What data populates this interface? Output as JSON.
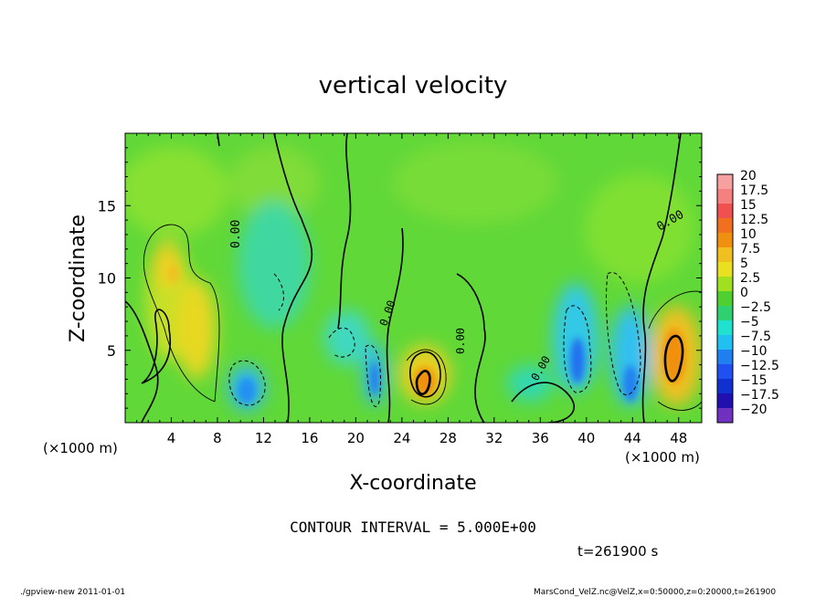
{
  "chart_data": {
    "type": "heatmap",
    "title": "vertical velocity",
    "xlabel": "X-coordinate",
    "ylabel": "Z-coordinate",
    "x_unit_left": "(×1000 m)",
    "x_unit_right": "(×1000 m)",
    "xlim": [
      0,
      50
    ],
    "ylim": [
      0,
      20
    ],
    "x_ticks": [
      4,
      8,
      12,
      16,
      20,
      24,
      28,
      32,
      36,
      40,
      44,
      48
    ],
    "y_ticks": [
      5,
      10,
      15
    ],
    "colorbar": {
      "labels": [
        "20",
        "17.5",
        "15",
        "12.5",
        "10",
        "7.5",
        "5",
        "2.5",
        "0",
        "−2.5",
        "−5",
        "−7.5",
        "−10",
        "−12.5",
        "−15",
        "−17.5",
        "−20"
      ],
      "colors": [
        "#f7a0a0",
        "#f48080",
        "#f05050",
        "#f07020",
        "#f09010",
        "#f0c020",
        "#e8e020",
        "#a0e020",
        "#50d030",
        "#30d070",
        "#20e0d0",
        "#20c0f0",
        "#2080f0",
        "#2050f0",
        "#1030d0",
        "#2010b0",
        "#7030c0"
      ]
    },
    "contour_interval": "CONTOUR INTERVAL = 5.000E+00",
    "contour_labels": [
      "0.00",
      "0.00",
      "0.00",
      "0.00",
      "0.00"
    ],
    "features": [
      {
        "kind": "updraft",
        "x": 5,
        "z": 9,
        "value": 7.5
      },
      {
        "kind": "downdraft",
        "x": 10.5,
        "z": 2.5,
        "value": -7.5
      },
      {
        "kind": "downdraft",
        "x": 22,
        "z": 2.5,
        "value": -5
      },
      {
        "kind": "updraft",
        "x": 26,
        "z": 2.5,
        "value": 10
      },
      {
        "kind": "downdraft",
        "x": 39.5,
        "z": 4,
        "value": -10
      },
      {
        "kind": "downdraft",
        "x": 43.5,
        "z": 3,
        "value": -7.5
      },
      {
        "kind": "updraft",
        "x": 47.5,
        "z": 4.5,
        "value": 10
      }
    ],
    "time_label": "t=261900 s"
  },
  "footer": {
    "left": "./gpview-new   2011-01-01",
    "right": "MarsCond_VelZ.nc@VelZ,x=0:50000,z=0:20000,t=261900"
  }
}
